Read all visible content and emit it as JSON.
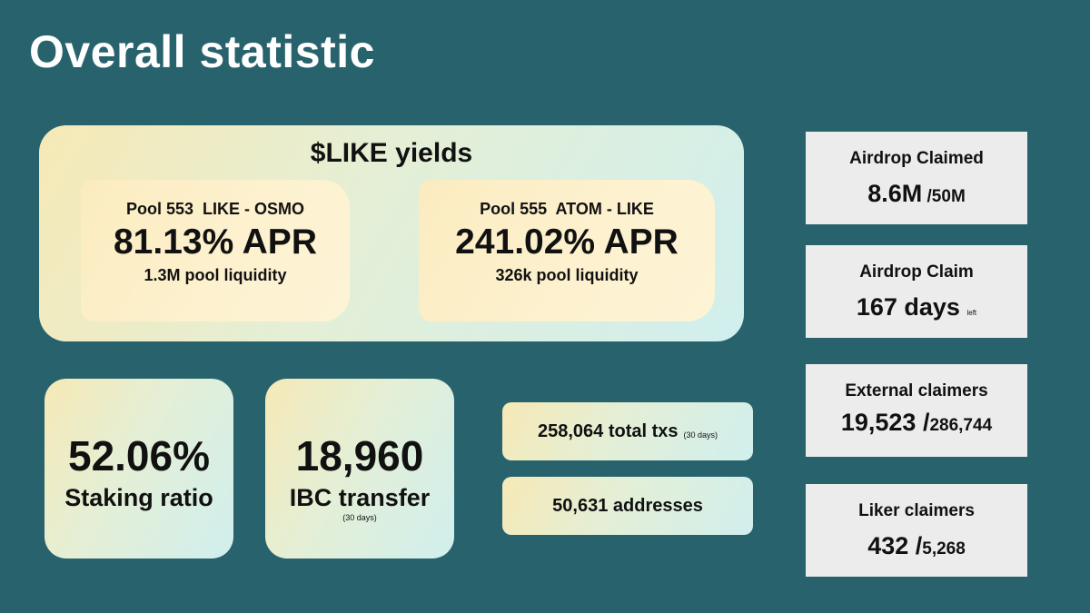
{
  "title": "Overall statistic",
  "yields": {
    "title": "$LIKE yields",
    "pools": [
      {
        "name": "Pool 553  LIKE - OSMO",
        "apr": "81.13% APR",
        "liquidity": "1.3M pool liquidity"
      },
      {
        "name": "Pool 555  ATOM - LIKE",
        "apr": "241.02% APR",
        "liquidity": "326k pool liquidity"
      }
    ]
  },
  "staking": {
    "value": "52.06%",
    "label": "Staking ratio"
  },
  "ibc": {
    "value": "18,960",
    "label": "IBC transfer",
    "sub": "(30 days)"
  },
  "txs": {
    "text": "258,064 total txs",
    "sub": "(30 days)"
  },
  "addresses": {
    "text": "50,631 addresses"
  },
  "airdrop_claimed": {
    "label": "Airdrop Claimed",
    "value": "8.6M",
    "of": " /50M"
  },
  "airdrop_claim": {
    "label": "Airdrop Claim",
    "value": "167 days",
    "sub": "left"
  },
  "external_claimers": {
    "label": "External claimers",
    "value": "19,523 /",
    "of": "286,744"
  },
  "liker_claimers": {
    "label": "Liker claimers",
    "value": "432 /",
    "of": "5,268"
  }
}
